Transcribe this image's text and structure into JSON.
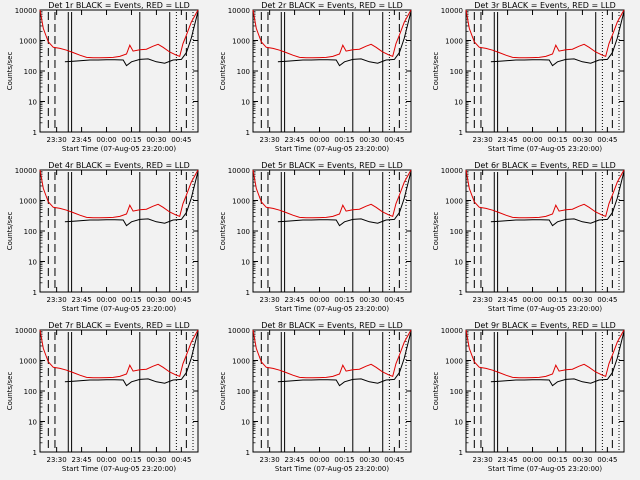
{
  "panels": [
    {
      "title": "Det 1r BLACK = Events, RED = LLD"
    },
    {
      "title": "Det 2r BLACK = Events, RED = LLD"
    },
    {
      "title": "Det 3r BLACK = Events, RED = LLD"
    },
    {
      "title": "Det 4r BLACK = Events, RED = LLD"
    },
    {
      "title": "Det 5r BLACK = Events, RED = LLD"
    },
    {
      "title": "Det 6r BLACK = Events, RED = LLD"
    },
    {
      "title": "Det 7r BLACK = Events, RED = LLD"
    },
    {
      "title": "Det 8r BLACK = Events, RED = LLD"
    },
    {
      "title": "Det 9r BLACK = Events, RED = LLD"
    }
  ],
  "ylabel": "Counts/sec",
  "xlabel": "Start Time (07-Aug-05 23:20:00)",
  "colors": {
    "events": "#000000",
    "lld": "#e00000",
    "background": "#f2f2f2"
  },
  "chart_data": {
    "type": "line",
    "y_scale": "log",
    "ylim": [
      1,
      10000
    ],
    "y_ticks": [
      "1",
      "10",
      "100",
      "1000",
      "10000"
    ],
    "xlim": [
      "23:20",
      "00:55"
    ],
    "x_ticks": [
      "23:30",
      "23:45",
      "00:00",
      "00:15",
      "00:30",
      "00:45"
    ],
    "series": [
      {
        "name": "BLACK = Events",
        "color": "#000000",
        "points": [
          [
            "23:35",
            200
          ],
          [
            "23:40",
            210
          ],
          [
            "23:45",
            220
          ],
          [
            "23:50",
            230
          ],
          [
            "23:55",
            230
          ],
          [
            "00:00",
            235
          ],
          [
            "00:05",
            235
          ],
          [
            "00:10",
            230
          ],
          [
            "00:12",
            150
          ],
          [
            "00:15",
            200
          ],
          [
            "00:20",
            240
          ],
          [
            "00:25",
            250
          ],
          [
            "00:30",
            200
          ],
          [
            "00:35",
            180
          ],
          [
            "00:40",
            230
          ],
          [
            "00:45",
            240
          ],
          [
            "00:48",
            400
          ],
          [
            "00:51",
            1200
          ],
          [
            "00:55",
            9000
          ]
        ]
      },
      {
        "name": "RED = LLD",
        "color": "#e00000",
        "points": [
          [
            "23:20",
            10000
          ],
          [
            "23:22",
            2500
          ],
          [
            "23:25",
            900
          ],
          [
            "23:28",
            600
          ],
          [
            "23:32",
            550
          ],
          [
            "23:36",
            480
          ],
          [
            "23:40",
            400
          ],
          [
            "23:44",
            330
          ],
          [
            "23:48",
            280
          ],
          [
            "23:52",
            270
          ],
          [
            "23:56",
            270
          ],
          [
            "00:00",
            275
          ],
          [
            "00:04",
            280
          ],
          [
            "00:08",
            300
          ],
          [
            "00:12",
            360
          ],
          [
            "00:14",
            700
          ],
          [
            "00:16",
            450
          ],
          [
            "00:20",
            500
          ],
          [
            "00:24",
            520
          ],
          [
            "00:28",
            650
          ],
          [
            "00:31",
            750
          ],
          [
            "00:34",
            600
          ],
          [
            "00:38",
            420
          ],
          [
            "00:42",
            330
          ],
          [
            "00:44",
            300
          ],
          [
            "00:46",
            800
          ],
          [
            "00:48",
            1500
          ],
          [
            "00:51",
            4000
          ],
          [
            "00:55",
            10000
          ]
        ]
      }
    ]
  }
}
